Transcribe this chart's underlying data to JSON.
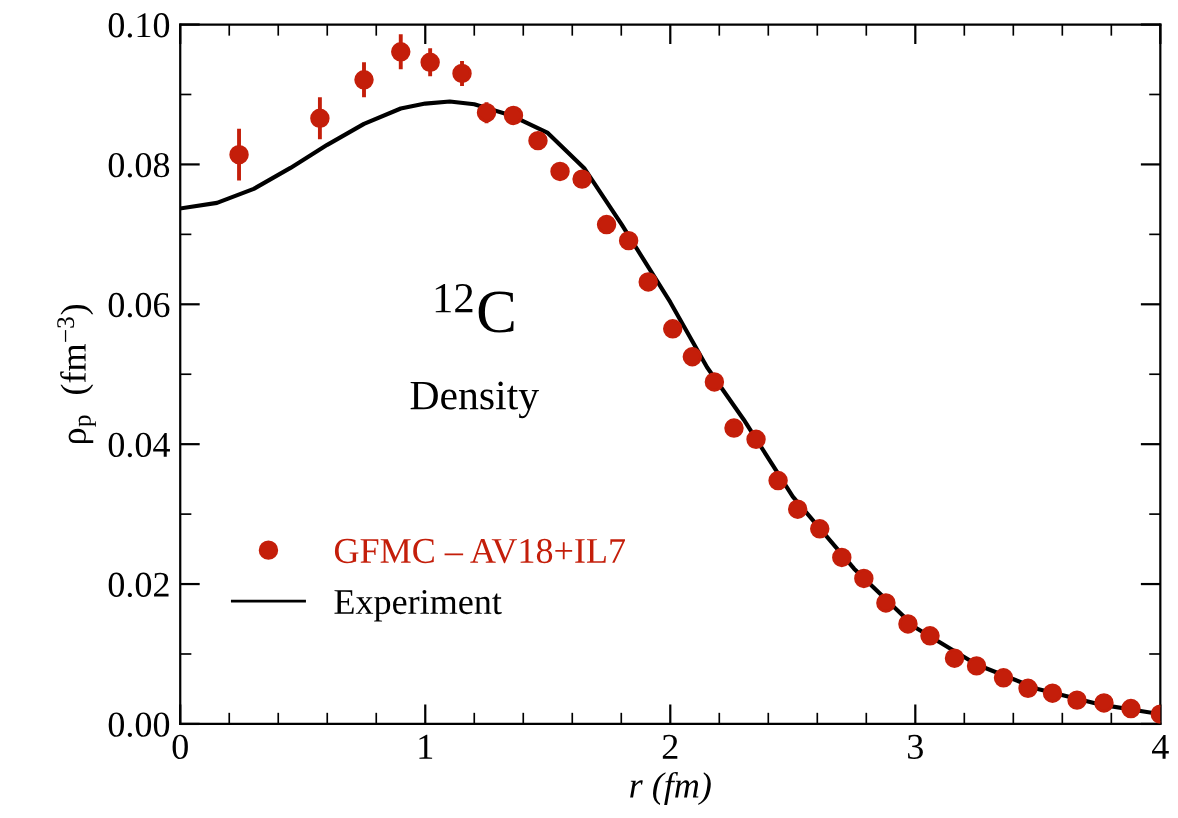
{
  "chart_data": {
    "type": "scatter",
    "xlabel": "r (fm)",
    "ylabel": "ρ$_{p}$  (fm$^{−3}$)",
    "annotations": [
      "$^{12}$C",
      "Density"
    ],
    "xlim": [
      0,
      4
    ],
    "xticks": [
      0,
      1,
      2,
      3,
      4
    ],
    "ylim": [
      0,
      0.1
    ],
    "yticks": [
      {
        "value": 0,
        "label": "0.00"
      },
      {
        "value": 0.02,
        "label": "0.02"
      },
      {
        "value": 0.04,
        "label": "0.04"
      },
      {
        "value": 0.06,
        "label": "0.06"
      },
      {
        "value": 0.08,
        "label": "0.08"
      },
      {
        "value": 0.1,
        "label": "0.10"
      }
    ],
    "grid": false,
    "legend": "bottom left",
    "series": [
      {
        "name": "GFMC – AV18+IL7",
        "color": "#c41e0a",
        "marker": "circle",
        "x": [
          0.24,
          0.57,
          0.75,
          0.9,
          1.02,
          1.15,
          1.25,
          1.36,
          1.46,
          1.55,
          1.64,
          1.74,
          1.83,
          1.91,
          2.01,
          2.09,
          2.18,
          2.26,
          2.35,
          2.44,
          2.52,
          2.61,
          2.7,
          2.79,
          2.88,
          2.97,
          3.06,
          3.16,
          3.25,
          3.36,
          3.46,
          3.56,
          3.66,
          3.77,
          3.88,
          4.0
        ],
        "values": [
          0.0814,
          0.0866,
          0.0921,
          0.0961,
          0.0946,
          0.093,
          0.0874,
          0.087,
          0.0834,
          0.079,
          0.0779,
          0.0714,
          0.0691,
          0.0632,
          0.0565,
          0.0525,
          0.0489,
          0.0423,
          0.0407,
          0.0348,
          0.0307,
          0.0279,
          0.0238,
          0.0208,
          0.0173,
          0.0143,
          0.0126,
          0.0094,
          0.0083,
          0.0066,
          0.0051,
          0.0044,
          0.0034,
          0.003,
          0.0022,
          0.0014
        ],
        "errors": [
          0.0037,
          0.003,
          0.0025,
          0.0025,
          0.002,
          0.0018,
          0.0015,
          0.0012,
          null,
          null,
          null,
          null,
          null,
          null,
          null,
          null,
          null,
          null,
          null,
          null,
          null,
          null,
          null,
          null,
          null,
          null,
          null,
          null,
          null,
          null,
          null,
          null,
          null,
          null,
          null,
          null
        ]
      },
      {
        "name": "Experiment",
        "type": "line",
        "color": "#000000",
        "marker": "none",
        "line_style": "solid",
        "x": [
          0,
          0.15,
          0.3,
          0.45,
          0.6,
          0.75,
          0.9,
          1.0,
          1.1,
          1.2,
          1.35,
          1.5,
          1.65,
          1.8,
          2.0,
          2.15,
          2.3,
          2.5,
          2.75,
          3.0,
          3.25,
          3.5,
          3.75,
          4.0
        ],
        "values": [
          0.0737,
          0.0745,
          0.0765,
          0.0795,
          0.0828,
          0.0858,
          0.088,
          0.0887,
          0.089,
          0.0886,
          0.087,
          0.0845,
          0.0794,
          0.0715,
          0.0603,
          0.051,
          0.0435,
          0.0325,
          0.0222,
          0.0138,
          0.0085,
          0.005,
          0.0028,
          0.0014
        ]
      }
    ]
  }
}
